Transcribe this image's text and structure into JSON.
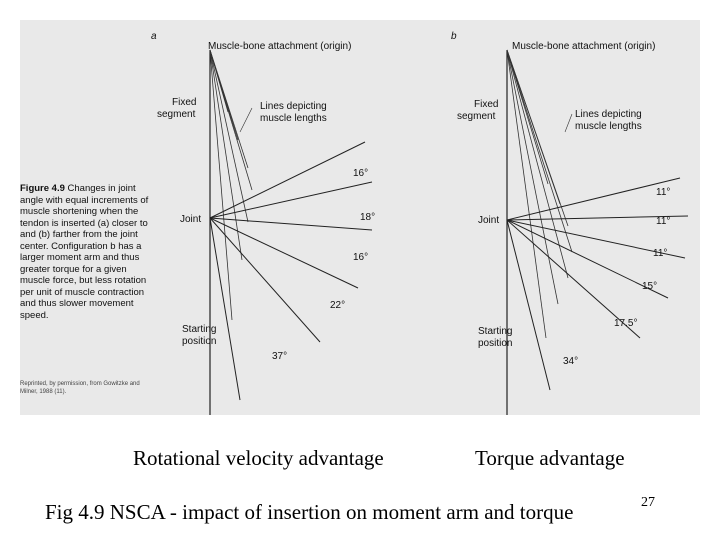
{
  "panel_a": {
    "letter": "a",
    "origin_label": "Muscle-bone attachment (origin)",
    "fixed_label_1": "Fixed",
    "fixed_label_2": "segment",
    "lines_label_1": "Lines depicting",
    "lines_label_2": "muscle lengths",
    "joint_label": "Joint",
    "start_label_1": "Starting",
    "start_label_2": "position",
    "angles": [
      "16°",
      "18°",
      "16°",
      "22°",
      "37°"
    ]
  },
  "panel_b": {
    "letter": "b",
    "origin_label": "Muscle-bone attachment (origin)",
    "fixed_label_1": "Fixed",
    "fixed_label_2": "segment",
    "lines_label_1": "Lines depicting",
    "lines_label_2": "muscle lengths",
    "joint_label": "Joint",
    "start_label_1": "Starting",
    "start_label_2": "position",
    "angles": [
      "11°",
      "11°",
      "11°",
      "15°",
      "17.5°",
      "34°"
    ]
  },
  "figure_caption": {
    "title": "Figure 4.9",
    "body": "Changes in joint angle with equal increments of muscle shortening when the tendon is inserted (a) closer to and (b) farther from the joint center. Configuration b has a larger moment arm and thus greater torque for a given muscle force, but less rotation per unit of muscle contraction and thus slower movement speed.",
    "credit": "Reprinted, by permission, from Gowitzke and Milner, 1988 (11)."
  },
  "labels": {
    "left": "Rotational velocity advantage",
    "right": "Torque advantage"
  },
  "caption": "Fig 4.9 NSCA - impact of insertion on moment arm and torque",
  "slide_number": "27"
}
